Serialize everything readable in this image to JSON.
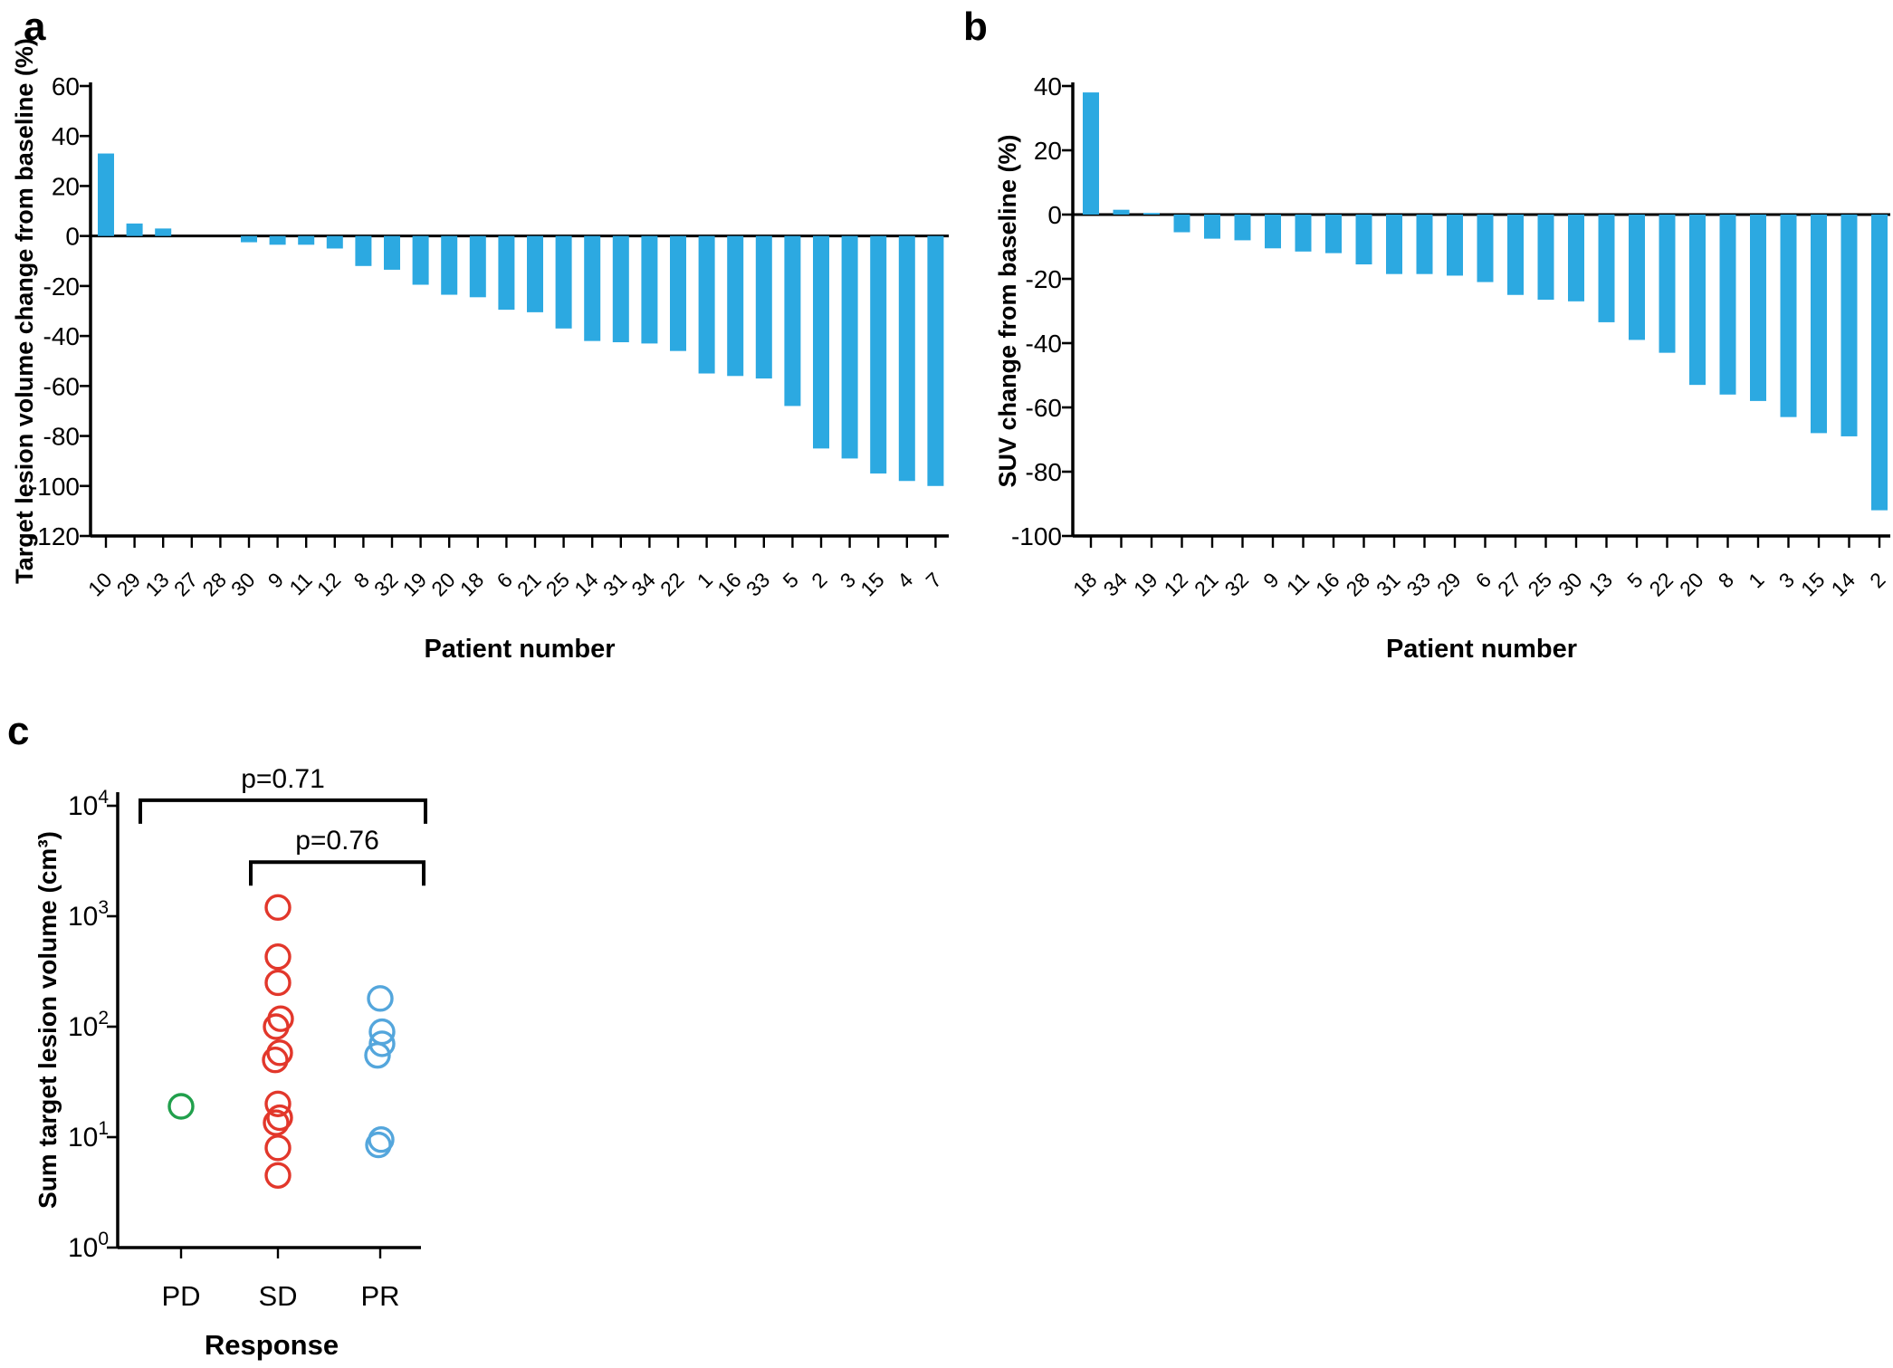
{
  "figure": {
    "background": "#ffffff"
  },
  "panels": [
    {
      "id": "a",
      "letter": "a"
    },
    {
      "id": "b",
      "letter": "b"
    },
    {
      "id": "c",
      "letter": "c"
    }
  ],
  "colors": {
    "bar": "#2CA9E1",
    "axis": "#000000",
    "pd_circle": "#21A04C",
    "sd_circle": "#E2372B",
    "pr_circle": "#54A6DC"
  },
  "chart_data": [
    {
      "panel": "a",
      "type": "bar",
      "title": "",
      "xlabel": "Patient number",
      "ylabel": "Target lesion volume change from baseline (%)",
      "ylim": [
        -120,
        60
      ],
      "ytick_step": 20,
      "grid": false,
      "categories": [
        "10",
        "29",
        "13",
        "27",
        "28",
        "30",
        "9",
        "11",
        "12",
        "8",
        "32",
        "19",
        "20",
        "18",
        "6",
        "21",
        "25",
        "14",
        "31",
        "34",
        "22",
        "1",
        "16",
        "33",
        "5",
        "2",
        "3",
        "15",
        "4",
        "7"
      ],
      "values": [
        33,
        5,
        3,
        0,
        0,
        -2.5,
        -3.5,
        -3.5,
        -5,
        -12,
        -13.5,
        -19.5,
        -23.5,
        -24.5,
        -29.5,
        -30.5,
        -37,
        -42,
        -42.5,
        -43,
        -46,
        -55,
        -56,
        -57,
        -68,
        -85,
        -89,
        -95,
        -98,
        -100
      ]
    },
    {
      "panel": "b",
      "type": "bar",
      "title": "",
      "xlabel": "Patient number",
      "ylabel": "SUV change from baseline (%)",
      "ylim": [
        -100,
        40
      ],
      "ytick_step": 20,
      "grid": false,
      "categories": [
        "18",
        "34",
        "19",
        "12",
        "21",
        "32",
        "9",
        "11",
        "16",
        "28",
        "31",
        "33",
        "29",
        "6",
        "27",
        "25",
        "30",
        "13",
        "5",
        "22",
        "20",
        "8",
        "1",
        "3",
        "15",
        "14",
        "2"
      ],
      "values": [
        38,
        1.5,
        0.5,
        -5.5,
        -7.5,
        -8,
        -10.5,
        -11.5,
        -12,
        -15.5,
        -18.5,
        -18.5,
        -19,
        -21,
        -25,
        -26.5,
        -27,
        -33.5,
        -39,
        -43,
        -53,
        -56,
        -58,
        -63,
        -68,
        -69,
        -92
      ]
    },
    {
      "panel": "c",
      "type": "scatter",
      "title": "",
      "xlabel": "Response",
      "ylabel": "Sum target lesion volume (cm³)",
      "yscale": "log",
      "ytick_exponents": [
        0,
        1,
        2,
        3,
        4
      ],
      "grid": false,
      "categories": [
        "PD",
        "SD",
        "PR"
      ],
      "series": [
        {
          "name": "PD",
          "color_key": "pd_circle",
          "values": [
            19
          ],
          "x_offsets": [
            0
          ]
        },
        {
          "name": "SD",
          "color_key": "sd_circle",
          "values": [
            1200,
            430,
            250,
            118,
            100,
            58,
            50,
            20,
            15,
            13.5,
            8,
            4.5
          ],
          "x_offsets": [
            0,
            0,
            0,
            3,
            -2,
            2,
            -3,
            0,
            2,
            -2,
            0,
            0
          ]
        },
        {
          "name": "PR",
          "color_key": "pr_circle",
          "values": [
            180,
            90,
            70,
            55,
            9.5,
            8.5
          ],
          "x_offsets": [
            0,
            2,
            2,
            -3,
            1,
            -2
          ]
        }
      ],
      "annotations": [
        {
          "label": "p=0.71",
          "from": "PD",
          "to": "PR",
          "y_exp": 4.05,
          "from_dx": -45,
          "to_dx": 50
        },
        {
          "label": "p=0.76",
          "from": "SD",
          "to": "PR",
          "y_exp": 3.49,
          "from_dx": -30,
          "to_dx": 48
        }
      ]
    }
  ]
}
